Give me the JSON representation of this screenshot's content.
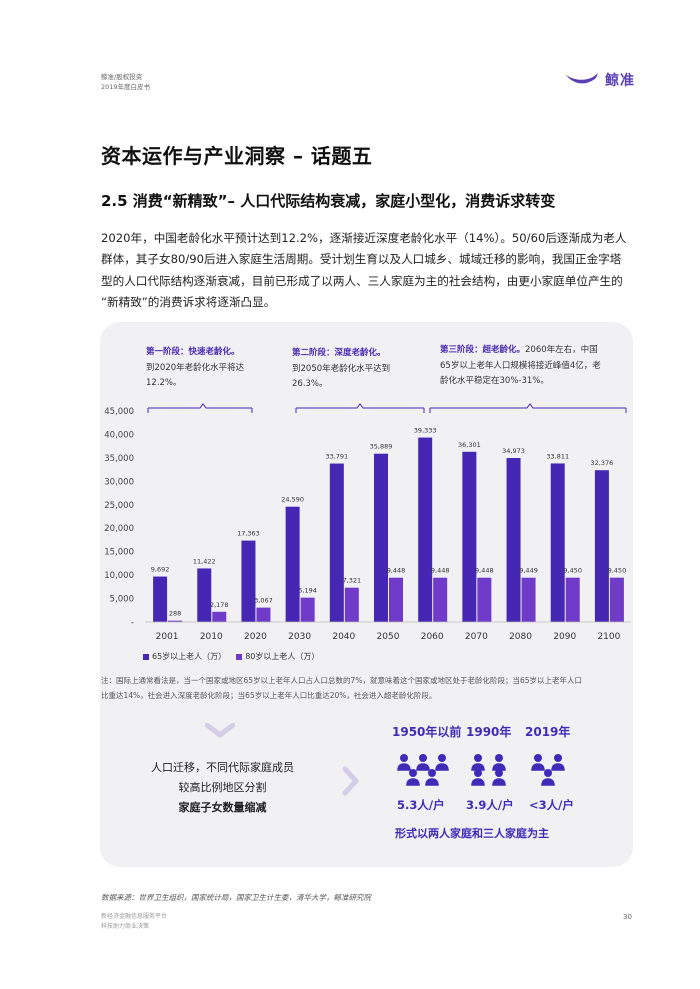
{
  "header": {
    "line1": "鲸准/股权投资",
    "line2": "2019年度白皮书",
    "logo_text": "鲸准"
  },
  "title": "资本运作与产业洞察 – 话题五",
  "subtitle": "2.5 消费“新精致”– 人口代际结构衰减，家庭小型化，消费诉求转变",
  "paragraph": [
    "2020年，中国老龄化水平预计达到12.2%，逐渐接近深度老龄化水平（14%）。50/60后逐渐成为老人",
    "群体，其子女80/90后进入家庭生活周期。受计划生育以及人口城乡、城域迁移的影响，我国正金字塔",
    "型的人口代际结构逐渐衰减，目前已形成了以两人、三人家庭为主的社会结构，由更小家庭单位产生的",
    "“新精致”的消费诉求将逐渐凸显。"
  ],
  "stages": [
    {
      "title": "第一阶段：快速老龄化。",
      "lines": [
        "到2020年老龄化水平将达",
        "12.2%。"
      ]
    },
    {
      "title": "第二阶段：深度老龄化。",
      "lines": [
        "到2050年老龄化水平达到",
        "26.3%。"
      ]
    },
    {
      "title": "第三阶段：超老龄化。",
      "title_tail": "2060年左右，中国",
      "lines": [
        "65岁以上老年人口规模将接近峰值4亿，老",
        "龄化水平稳定在30%-31%。"
      ]
    }
  ],
  "chart_data": {
    "type": "bar",
    "categories": [
      "2001",
      "2010",
      "2020",
      "2030",
      "2040",
      "2050",
      "2060",
      "2070",
      "2080",
      "2090",
      "2100"
    ],
    "series": [
      {
        "name": "65岁以上老人（万）",
        "color": "#4527b4",
        "values": [
          9692,
          11422,
          17363,
          24590,
          33791,
          35889,
          39333,
          36301,
          34973,
          33811,
          32376
        ],
        "labels": [
          "9,692",
          "11,422",
          "17,363",
          "24,590",
          "33,791",
          "35,889",
          "39,333",
          "36,301",
          "34,973",
          "33,811",
          "32,376"
        ]
      },
      {
        "name": "80岁以上老人（万）",
        "color": "#6f3bc8",
        "values": [
          288,
          2178,
          3067,
          5194,
          7321,
          9448,
          9448,
          9448,
          9449,
          9450,
          9450
        ],
        "labels": [
          "288",
          "2,178",
          "3,067",
          "5,194",
          "7,321",
          "9,448",
          "9,448",
          "9,448",
          "9,449",
          "9,450",
          "9,450"
        ]
      }
    ],
    "yticks": [
      "-",
      "5,000",
      "10,000",
      "15,000",
      "20,000",
      "25,000",
      "30,000",
      "35,000",
      "40,000",
      "45,000"
    ],
    "ylim": [
      0,
      45000
    ],
    "legend": "bottom-left"
  },
  "note": [
    "注：国际上通常看法是，当一个国家或地区65岁以上老年人口占人口总数的7%，就意味着这个国家或地区处于老龄化阶段；当65岁以上老年人口",
    "比重达14%，社会进入深度老龄化阶段；当65岁以上老年人口比重达20%，社会进入超老龄化阶段。"
  ],
  "family": {
    "left_lines": [
      "人口迁移，不同代际家庭成员",
      "较高比例地区分割",
      "家庭子女数量缩减"
    ],
    "eras": [
      "1950年以前",
      "1990年",
      "2019年"
    ],
    "household_sizes": [
      "5.3人/户",
      "3.9人/户",
      "<3人/户"
    ],
    "summary": "形式以两人家庭和三人家庭为主"
  },
  "source": "数据来源：世界卫生组织，国家统计局，国家卫生计生委，清华大学，鲸准研究院",
  "footer": {
    "line1": "新经济金融信息服务平台",
    "line2": "科技助力商业决策",
    "page": "30"
  },
  "colors": {
    "accent": "#4527b4",
    "accent2": "#6f3bc8",
    "card_bg": "#f1f1f4"
  }
}
